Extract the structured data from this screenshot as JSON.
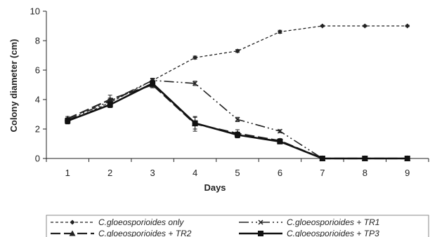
{
  "chart_data": {
    "type": "line",
    "title": "",
    "xlabel": "Days",
    "ylabel": "Colony diameter (cm)",
    "x": [
      1,
      2,
      3,
      4,
      5,
      6,
      7,
      8,
      9
    ],
    "xlim": [
      0.5,
      9.5
    ],
    "ylim": [
      0,
      10
    ],
    "yticks": [
      0,
      2,
      4,
      6,
      8,
      10
    ],
    "grid": false,
    "legend_position": "bottom",
    "series": [
      {
        "name": "C.gloeosporioides only",
        "values": [
          2.5,
          3.8,
          5.3,
          6.85,
          7.3,
          8.6,
          9.0,
          9.0,
          9.0
        ],
        "errors": [
          0.15,
          0.2,
          0.15,
          0.1,
          0.1,
          0.1,
          0.05,
          0.05,
          0.05
        ],
        "line_style": "short-dash",
        "marker": "diamond",
        "color": "#222222"
      },
      {
        "name": "C.gloeosporioides + TR1",
        "values": [
          2.6,
          3.9,
          5.3,
          5.1,
          2.65,
          1.85,
          0,
          0,
          0
        ],
        "errors": [
          0.15,
          0.2,
          0.15,
          0.15,
          0.15,
          0.1,
          0,
          0,
          0
        ],
        "line_style": "dash-dot-dot",
        "marker": "x",
        "color": "#222222"
      },
      {
        "name": "C.gloeosporioides + TR2",
        "values": [
          2.7,
          4.0,
          5.0,
          2.35,
          1.7,
          1.2,
          0,
          0,
          0
        ],
        "errors": [
          0.15,
          0.3,
          0.2,
          0.5,
          0.25,
          0.15,
          0,
          0,
          0
        ],
        "line_style": "long-dash",
        "marker": "triangle",
        "color": "#222222"
      },
      {
        "name": "C.gloeosporioides + TP3",
        "values": [
          2.55,
          3.65,
          5.1,
          2.4,
          1.6,
          1.15,
          0,
          0,
          0
        ],
        "errors": [
          0.2,
          0.2,
          0.2,
          0.4,
          0.2,
          0.1,
          0,
          0,
          0
        ],
        "line_style": "solid",
        "marker": "square",
        "color": "#111111"
      }
    ]
  }
}
